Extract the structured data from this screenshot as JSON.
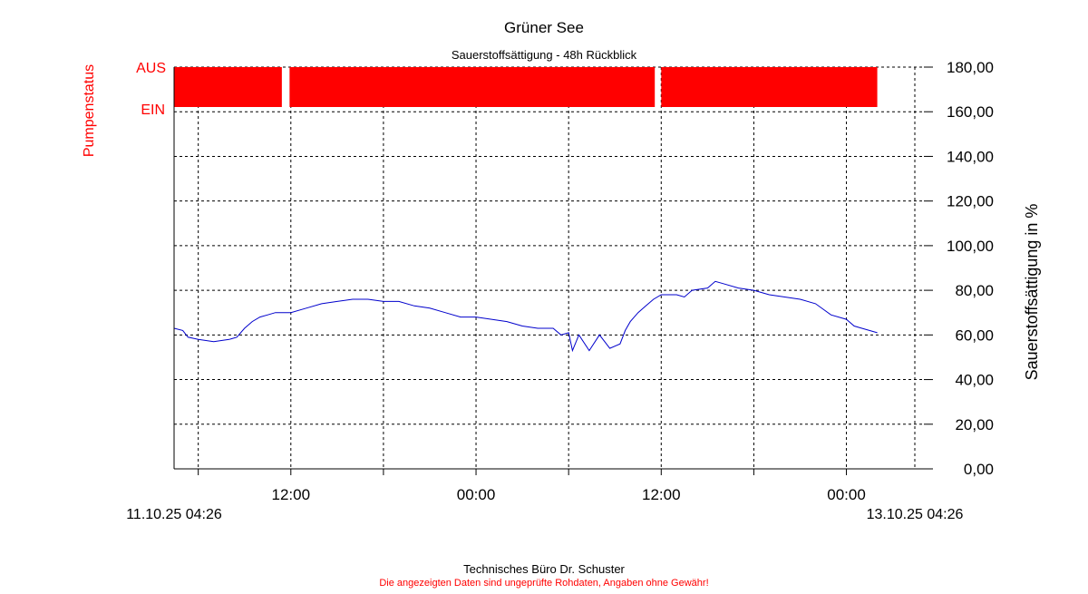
{
  "chart_data": {
    "type": "line",
    "title": "Grüner See",
    "subtitle": "Sauerstoffsättigung - 48h Rückblick",
    "ylabel": "Sauerstoffsättigung in %",
    "y2label": "Pumpenstatus",
    "ylim": [
      0,
      180
    ],
    "yticks": [
      "0,00",
      "20,00",
      "40,00",
      "60,00",
      "80,00",
      "100,00",
      "120,00",
      "140,00",
      "160,00",
      "180,00"
    ],
    "xlim": [
      "11.10.25 04:26",
      "13.10.25 04:26"
    ],
    "xtick_labels": [
      "12:00",
      "00:00",
      "12:00",
      "00:00"
    ],
    "x_start_label": "11.10.25 04:26",
    "x_end_label": "13.10.25 04:26",
    "grid": true,
    "pump_status": {
      "labels": [
        "AUS",
        "EIN"
      ],
      "color": "#ff0000",
      "on_intervals": [
        [
          "11.10.25 04:26",
          "11.10.25 11:25"
        ],
        [
          "11.10.25 11:55",
          "12.10.25 11:35"
        ],
        [
          "12.10.25 12:00",
          "13.10.25 02:00"
        ]
      ]
    },
    "series": [
      {
        "color": "#0000cc",
        "points": [
          [
            "11.10.25 04:26",
            63
          ],
          [
            "11.10.25 05:00",
            62
          ],
          [
            "11.10.25 05:20",
            59
          ],
          [
            "11.10.25 06:00",
            58
          ],
          [
            "11.10.25 07:00",
            57
          ],
          [
            "11.10.25 08:00",
            58
          ],
          [
            "11.10.25 08:30",
            59
          ],
          [
            "11.10.25 09:00",
            63
          ],
          [
            "11.10.25 09:30",
            66
          ],
          [
            "11.10.25 10:00",
            68
          ],
          [
            "11.10.25 10:30",
            69
          ],
          [
            "11.10.25 11:00",
            70
          ],
          [
            "11.10.25 12:00",
            70
          ],
          [
            "11.10.25 13:00",
            72
          ],
          [
            "11.10.25 14:00",
            74
          ],
          [
            "11.10.25 15:00",
            75
          ],
          [
            "11.10.25 16:00",
            76
          ],
          [
            "11.10.25 17:00",
            76
          ],
          [
            "11.10.25 18:00",
            75
          ],
          [
            "11.10.25 19:00",
            75
          ],
          [
            "11.10.25 20:00",
            73
          ],
          [
            "11.10.25 21:00",
            72
          ],
          [
            "11.10.25 22:00",
            70
          ],
          [
            "11.10.25 23:00",
            68
          ],
          [
            "12.10.25 00:00",
            68
          ],
          [
            "12.10.25 01:00",
            67
          ],
          [
            "12.10.25 02:00",
            66
          ],
          [
            "12.10.25 03:00",
            64
          ],
          [
            "12.10.25 04:00",
            63
          ],
          [
            "12.10.25 05:00",
            63
          ],
          [
            "12.10.25 05:30",
            60
          ],
          [
            "12.10.25 06:00",
            61
          ],
          [
            "12.10.25 06:15",
            53
          ],
          [
            "12.10.25 06:40",
            60
          ],
          [
            "12.10.25 07:20",
            53
          ],
          [
            "12.10.25 08:00",
            60
          ],
          [
            "12.10.25 08:40",
            54
          ],
          [
            "12.10.25 09:20",
            56
          ],
          [
            "12.10.25 09:40",
            62
          ],
          [
            "12.10.25 10:00",
            66
          ],
          [
            "12.10.25 10:30",
            70
          ],
          [
            "12.10.25 11:00",
            73
          ],
          [
            "12.10.25 11:30",
            76
          ],
          [
            "12.10.25 12:00",
            78
          ],
          [
            "12.10.25 13:00",
            78
          ],
          [
            "12.10.25 13:30",
            77
          ],
          [
            "12.10.25 14:00",
            80
          ],
          [
            "12.10.25 15:00",
            81
          ],
          [
            "12.10.25 15:30",
            84
          ],
          [
            "12.10.25 16:00",
            83
          ],
          [
            "12.10.25 17:00",
            81
          ],
          [
            "12.10.25 18:00",
            80
          ],
          [
            "12.10.25 19:00",
            78
          ],
          [
            "12.10.25 20:00",
            77
          ],
          [
            "12.10.25 21:00",
            76
          ],
          [
            "12.10.25 22:00",
            74
          ],
          [
            "12.10.25 23:00",
            69
          ],
          [
            "13.10.25 00:00",
            67
          ],
          [
            "13.10.25 00:30",
            64
          ],
          [
            "13.10.25 01:00",
            63
          ],
          [
            "13.10.25 02:00",
            61
          ]
        ]
      }
    ]
  },
  "footer": {
    "company": "Technisches Büro Dr. Schuster",
    "disclaimer": "Die angezeigten Daten sind ungeprüfte Rohdaten, Angaben ohne Gewähr!"
  },
  "colors": {
    "pump_label": "#ff0000",
    "disclaimer": "#ff0000",
    "line": "#0000cc",
    "axis": "#000000",
    "grid": "#000000"
  }
}
